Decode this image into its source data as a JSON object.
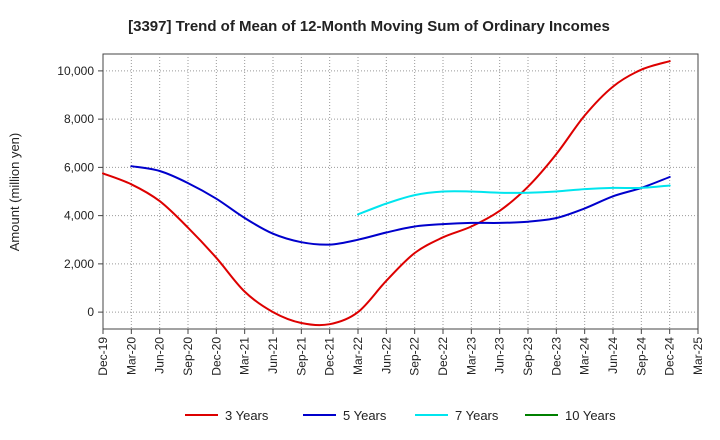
{
  "chart_data": {
    "type": "line",
    "title": "[3397]  Trend of Mean of 12-Month Moving Sum of Ordinary Incomes",
    "xlabel": "",
    "ylabel": "Amount (million yen)",
    "ylim": [
      -700,
      10700
    ],
    "yticks": [
      0,
      2000,
      4000,
      6000,
      8000,
      10000
    ],
    "ytick_labels": [
      "0",
      "2,000",
      "4,000",
      "6,000",
      "8,000",
      "10,000"
    ],
    "categories": [
      "Dec-19",
      "Mar-20",
      "Jun-20",
      "Sep-20",
      "Dec-20",
      "Mar-21",
      "Jun-21",
      "Sep-21",
      "Dec-21",
      "Mar-22",
      "Jun-22",
      "Sep-22",
      "Dec-22",
      "Mar-23",
      "Jun-23",
      "Sep-23",
      "Dec-23",
      "Mar-24",
      "Jun-24",
      "Sep-24",
      "Dec-24",
      "Mar-25"
    ],
    "grid": true,
    "legend_position": "bottom",
    "series": [
      {
        "name": "3 Years",
        "color": "#dd0000",
        "values": [
          5750,
          5300,
          4600,
          3500,
          2250,
          850,
          0,
          -450,
          -500,
          0,
          1300,
          2450,
          3100,
          3550,
          4200,
          5200,
          6550,
          8150,
          9350,
          10050,
          10400,
          null
        ]
      },
      {
        "name": "5 Years",
        "color": "#0000cc",
        "values": [
          null,
          6050,
          5850,
          5350,
          4700,
          3900,
          3250,
          2900,
          2800,
          3000,
          3300,
          3550,
          3650,
          3700,
          3700,
          3750,
          3900,
          4300,
          4800,
          5150,
          5600,
          null
        ]
      },
      {
        "name": "7 Years",
        "color": "#00e5ee",
        "values": [
          null,
          null,
          null,
          null,
          null,
          null,
          null,
          null,
          null,
          4050,
          4500,
          4850,
          5000,
          5000,
          4950,
          4950,
          5000,
          5100,
          5150,
          5150,
          5250,
          null
        ]
      },
      {
        "name": "10 Years",
        "color": "#008000",
        "values": [
          null,
          null,
          null,
          null,
          null,
          null,
          null,
          null,
          null,
          null,
          null,
          null,
          null,
          null,
          null,
          null,
          null,
          null,
          null,
          null,
          null,
          null
        ]
      }
    ]
  }
}
